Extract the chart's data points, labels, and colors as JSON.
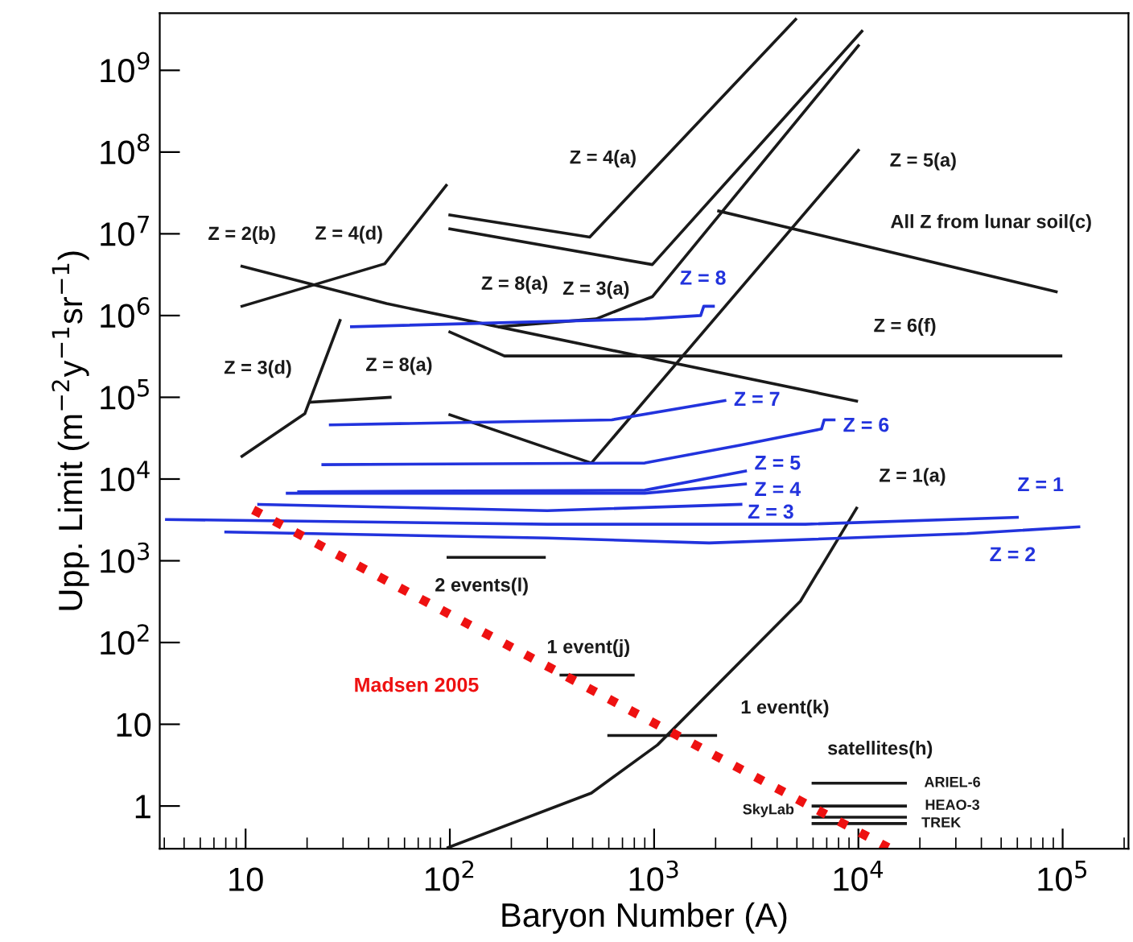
{
  "chart_data": {
    "type": "line",
    "xlabel": "Baryon Number (A)",
    "ylabel": "Upp. Limit (m$^{−2}$y$^{−1}$sr$^{−1}$)",
    "log": "xy",
    "grid": false,
    "legend": false,
    "marker": "none",
    "line_style": "solid",
    "xlim": [
      3.8,
      210000
    ],
    "ylim": [
      0.3,
      5000000000
    ],
    "xticks": [
      10,
      {
        "value": 100,
        "label": "10$^{2}$"
      },
      {
        "value": 1000,
        "label": "10$^{3}$"
      },
      {
        "value": 10000,
        "label": "10$^{4}$"
      },
      {
        "value": 100000,
        "label": "10$^{5}$"
      }
    ],
    "yticks": [
      1,
      10,
      {
        "value": 100,
        "label": "10$^{2}$"
      },
      {
        "value": 1000,
        "label": "10$^{3}$"
      },
      {
        "value": 10000,
        "label": "10$^{4}$"
      },
      {
        "value": 100000,
        "label": "10$^{5}$"
      },
      {
        "value": 1000000,
        "label": "10$^{6}$"
      },
      {
        "value": 10000000,
        "label": "10$^{7}$"
      },
      {
        "value": 100000000,
        "label": "10$^{8}$"
      },
      {
        "value": 1000000000,
        "label": "10$^{9}$"
      }
    ],
    "series": [
      {
        "color": "#1a1a1a",
        "x": [
          9.6,
          49,
          9800
        ],
        "values": [
          4000000,
          1400000,
          90000
        ]
      },
      {
        "color": "#1a1a1a",
        "x": [
          9.6,
          48,
          96
        ],
        "values": [
          1300000,
          4300000,
          39000000
        ]
      },
      {
        "color": "#1a1a1a",
        "x": [
          9.6,
          19.5,
          29
        ],
        "values": [
          19000,
          63000,
          870000
        ]
      },
      {
        "color": "#1a1a1a",
        "x": [
          20.7,
          51
        ],
        "values": [
          87000,
          100000
        ]
      },
      {
        "color": "#1a1a1a",
        "x": [
          100,
          484,
          4930
        ],
        "values": [
          17000000,
          9100000,
          4200000000
        ]
      },
      {
        "color": "#1a1a1a",
        "x": [
          100,
          980,
          10400
        ],
        "values": [
          11500000,
          4200000,
          3000000000
        ]
      },
      {
        "color": "#1a1a1a",
        "x": [
          175,
          520,
          980,
          10000
        ],
        "values": [
          730000,
          910000,
          1700000,
          2000000000
        ]
      },
      {
        "color": "#1a1a1a",
        "x": [
          100,
          493,
          10000
        ],
        "values": [
          61000,
          15700,
          105000000
        ]
      },
      {
        "color": "#1a1a1a",
        "x": [
          2070,
          93000
        ],
        "values": [
          19000000,
          1960000
        ]
      },
      {
        "color": "#1a1a1a",
        "x": [
          100,
          185,
          98000
        ],
        "values": [
          630000,
          320000,
          320000
        ]
      },
      {
        "color": "#1a1a1a",
        "x": [
          98,
          493,
          1040,
          5200,
          9800
        ],
        "values": [
          0.31,
          1.44,
          5.6,
          320,
          4400
        ]
      },
      {
        "color": "#1a1a1a",
        "x": [
          98,
          290
        ],
        "values": [
          1100,
          1100
        ]
      },
      {
        "color": "#1a1a1a",
        "x": [
          350,
          790
        ],
        "values": [
          40,
          40
        ]
      },
      {
        "color": "#1a1a1a",
        "x": [
          600,
          2000
        ],
        "values": [
          7.3,
          7.3
        ]
      },
      {
        "color": "#1a1a1a",
        "x": [
          6000,
          17000
        ],
        "values": [
          1.9,
          1.9
        ]
      },
      {
        "color": "#1a1a1a",
        "x": [
          6000,
          17000
        ],
        "values": [
          1,
          1
        ]
      },
      {
        "color": "#1a1a1a",
        "x": [
          6000,
          17000
        ],
        "values": [
          0.73,
          0.73
        ]
      },
      {
        "color": "#1a1a1a",
        "x": [
          6000,
          17000
        ],
        "values": [
          0.61,
          0.61
        ]
      },
      {
        "name": "Z = 8",
        "color": "#2233dd",
        "x": [
          33,
          900,
          1690,
          1750,
          1950
        ],
        "values": [
          730000,
          910000,
          1000000,
          1300000,
          1300000
        ]
      },
      {
        "name": "Z = 7",
        "color": "#2233dd",
        "x": [
          26,
          620,
          2220
        ],
        "values": [
          46000,
          53000,
          91000
        ]
      },
      {
        "name": "Z = 6",
        "color": "#2233dd",
        "x": [
          23.9,
          900,
          2660,
          6600,
          6800,
          7600
        ],
        "values": [
          15000,
          15700,
          26000,
          41000,
          53000,
          53000
        ]
      },
      {
        "name": "Z = 5",
        "color": "#2233dd",
        "x": [
          18.2,
          900,
          2800
        ],
        "values": [
          7000,
          7300,
          12500
        ]
      },
      {
        "name": "Z = 4",
        "color": "#2233dd",
        "x": [
          16,
          900,
          2800
        ],
        "values": [
          6700,
          6700,
          8700
        ]
      },
      {
        "name": "Z = 3",
        "color": "#2233dd",
        "x": [
          11.6,
          300,
          2660
        ],
        "values": [
          4900,
          4100,
          4900
        ]
      },
      {
        "name": "Z = 1",
        "color": "#2233dd",
        "x": [
          4.1,
          300,
          5500,
          60000
        ],
        "values": [
          3200,
          2800,
          2800,
          3400
        ]
      },
      {
        "name": "Z = 2",
        "color": "#2233dd",
        "x": [
          8,
          300,
          1860,
          34000,
          120000
        ],
        "values": [
          2250,
          1900,
          1650,
          2150,
          2600
        ]
      },
      {
        "name": "Madsen 2005",
        "color": "#ee1111",
        "line_style": "dotted",
        "x": [
          10.9,
          14000
        ],
        "values": [
          4200,
          0.31
        ]
      }
    ],
    "annotations": [
      {
        "text": "Z = 2(b)",
        "x": 9.6,
        "y": 4000000
      },
      {
        "text": "Z = 4(d)",
        "x": 48,
        "y": 4300000
      },
      {
        "text": "Z = 8(a)",
        "x": 100,
        "y": 11500000
      },
      {
        "text": "Z = 3(d)",
        "x": 19.5,
        "y": 63000
      },
      {
        "text": "Z = 8(a)",
        "x": 51,
        "y": 100000
      },
      {
        "text": "Z = 4(a)",
        "x": 1110,
        "y": 83000000
      },
      {
        "text": "Z = 3(a)",
        "x": 520,
        "y": 910000
      },
      {
        "text": "Z = 5(a)",
        "x": 10000,
        "y": 105000000
      },
      {
        "text": "All Z from lunar soil(c)",
        "x": 16300,
        "y": 5600000
      },
      {
        "text": "Z = 6(f)",
        "x": 16900,
        "y": 320000
      },
      {
        "text": "Z = 1(a)",
        "x": 9800,
        "y": 4400
      },
      {
        "text": "2 events(l)",
        "x": 290,
        "y": 1100
      },
      {
        "text": "1 event(j)",
        "x": 790,
        "y": 40
      },
      {
        "text": "1 event(k)",
        "x": 2000,
        "y": 7.3
      },
      {
        "text": "satellites(h)",
        "x": 6000,
        "y": 1.9
      },
      {
        "text": "ARIEL-6",
        "x": 17000,
        "y": 1.9
      },
      {
        "text": "HEAO-3",
        "x": 17000,
        "y": 1
      },
      {
        "text": "SkyLab",
        "x": 6000,
        "y": 0.73
      },
      {
        "text": "TREK",
        "x": 17000,
        "y": 0.61
      }
    ]
  }
}
